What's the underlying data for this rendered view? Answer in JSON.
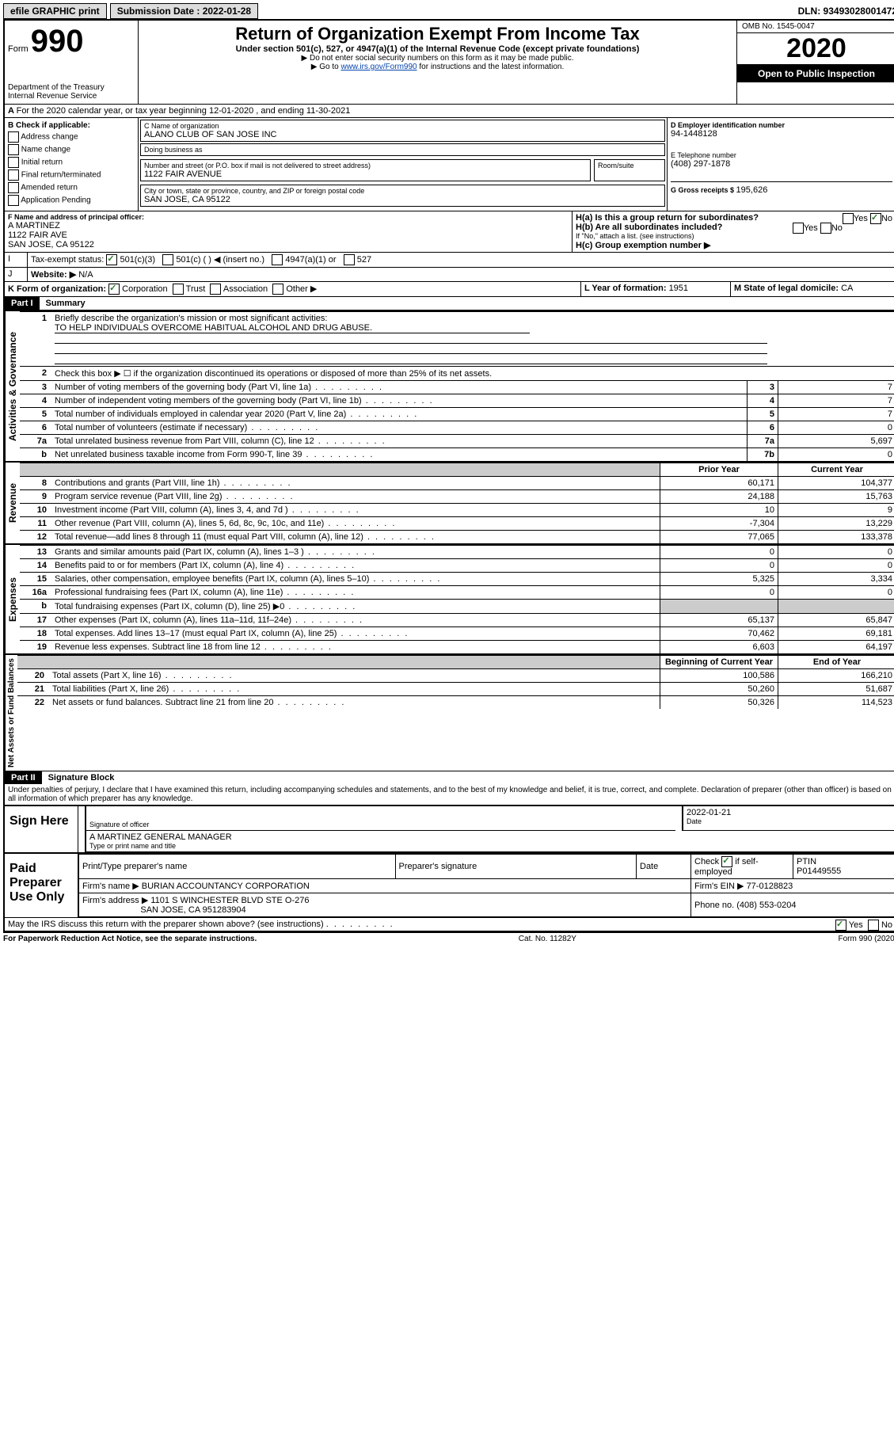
{
  "top": {
    "efile": "efile GRAPHIC print",
    "sub_label": "Submission Date : 2022-01-28",
    "dln": "DLN: 93493028001472"
  },
  "header": {
    "form_word": "Form",
    "form_num": "990",
    "dept": "Department of the Treasury\nInternal Revenue Service",
    "title": "Return of Organization Exempt From Income Tax",
    "subtitle": "Under section 501(c), 527, or 4947(a)(1) of the Internal Revenue Code (except private foundations)",
    "instr1": "▶ Do not enter social security numbers on this form as it may be made public.",
    "instr2_pre": "▶ Go to ",
    "instr2_link": "www.irs.gov/Form990",
    "instr2_post": " for instructions and the latest information.",
    "omb": "OMB No. 1545-0047",
    "year": "2020",
    "inspect": "Open to Public Inspection"
  },
  "line_a": "For the 2020 calendar year, or tax year beginning 12-01-2020    , and ending 11-30-2021",
  "sec_b": {
    "label": "B Check if applicable:",
    "opts": [
      "Address change",
      "Name change",
      "Initial return",
      "Final return/terminated",
      "Amended return",
      "Application Pending"
    ]
  },
  "sec_c": {
    "name_label": "C Name of organization",
    "name": "ALANO CLUB OF SAN JOSE INC",
    "dba_label": "Doing business as",
    "dba": "",
    "street_label": "Number and street (or P.O. box if mail is not delivered to street address)",
    "room_label": "Room/suite",
    "street": "1122 FAIR AVENUE",
    "city_label": "City or town, state or province, country, and ZIP or foreign postal code",
    "city": "SAN JOSE, CA  95122"
  },
  "sec_d": {
    "label": "D Employer identification number",
    "val": "94-1448128"
  },
  "sec_e": {
    "label": "E Telephone number",
    "val": "(408) 297-1878"
  },
  "sec_g": {
    "label": "G Gross receipts $ ",
    "val": "195,626"
  },
  "sec_f": {
    "label": "F  Name and address of principal officer:",
    "name": "A MARTINEZ",
    "addr1": "1122 FAIR AVE",
    "addr2": "SAN JOSE, CA  95122"
  },
  "sec_h": {
    "a": "H(a)  Is this a group return for subordinates?",
    "a_yes": "Yes",
    "a_no": "No",
    "b": "H(b)  Are all subordinates included?",
    "b_yes": "Yes",
    "b_no": "No",
    "b_note": "If \"No,\" attach a list. (see instructions)",
    "c": "H(c)  Group exemption number ▶"
  },
  "sec_i": {
    "label": "Tax-exempt status:",
    "o1": "501(c)(3)",
    "o2": "501(c) (  ) ◀ (insert no.)",
    "o3": "4947(a)(1) or",
    "o4": "527"
  },
  "sec_j": {
    "label": "Website: ▶",
    "val": "N/A"
  },
  "sec_k": {
    "label": "K Form of organization:",
    "o1": "Corporation",
    "o2": "Trust",
    "o3": "Association",
    "o4": "Other ▶"
  },
  "sec_l": {
    "label": "L Year of formation: ",
    "val": "1951"
  },
  "sec_m": {
    "label": "M State of legal domicile: ",
    "val": "CA"
  },
  "part1": {
    "header": "Part I",
    "title": "Summary"
  },
  "summary": {
    "l1_label": "Briefly describe the organization's mission or most significant activities:",
    "l1_val": "TO HELP INDIVIDUALS OVERCOME HABITUAL ALCOHOL AND DRUG ABUSE.",
    "l2": "Check this box ▶ ☐  if the organization discontinued its operations or disposed of more than 25% of its net assets.",
    "rows_single": [
      {
        "n": "3",
        "t": "Number of voting members of the governing body (Part VI, line 1a)",
        "c": "3",
        "v": "7"
      },
      {
        "n": "4",
        "t": "Number of independent voting members of the governing body (Part VI, line 1b)",
        "c": "4",
        "v": "7"
      },
      {
        "n": "5",
        "t": "Total number of individuals employed in calendar year 2020 (Part V, line 2a)",
        "c": "5",
        "v": "7"
      },
      {
        "n": "6",
        "t": "Total number of volunteers (estimate if necessary)",
        "c": "6",
        "v": "0"
      },
      {
        "n": "7a",
        "t": "Total unrelated business revenue from Part VIII, column (C), line 12",
        "c": "7a",
        "v": "5,697"
      },
      {
        "n": "b",
        "t": "Net unrelated business taxable income from Form 990-T, line 39",
        "c": "7b",
        "v": "0"
      }
    ],
    "col_headers": {
      "prior": "Prior Year",
      "current": "Current Year"
    },
    "revenue": [
      {
        "n": "8",
        "t": "Contributions and grants (Part VIII, line 1h)",
        "p": "60,171",
        "c": "104,377"
      },
      {
        "n": "9",
        "t": "Program service revenue (Part VIII, line 2g)",
        "p": "24,188",
        "c": "15,763"
      },
      {
        "n": "10",
        "t": "Investment income (Part VIII, column (A), lines 3, 4, and 7d )",
        "p": "10",
        "c": "9"
      },
      {
        "n": "11",
        "t": "Other revenue (Part VIII, column (A), lines 5, 6d, 8c, 9c, 10c, and 11e)",
        "p": "-7,304",
        "c": "13,229"
      },
      {
        "n": "12",
        "t": "Total revenue—add lines 8 through 11 (must equal Part VIII, column (A), line 12)",
        "p": "77,065",
        "c": "133,378"
      }
    ],
    "expenses": [
      {
        "n": "13",
        "t": "Grants and similar amounts paid (Part IX, column (A), lines 1–3 )",
        "p": "0",
        "c": "0"
      },
      {
        "n": "14",
        "t": "Benefits paid to or for members (Part IX, column (A), line 4)",
        "p": "0",
        "c": "0"
      },
      {
        "n": "15",
        "t": "Salaries, other compensation, employee benefits (Part IX, column (A), lines 5–10)",
        "p": "5,325",
        "c": "3,334"
      },
      {
        "n": "16a",
        "t": "Professional fundraising fees (Part IX, column (A), line 11e)",
        "p": "0",
        "c": "0"
      },
      {
        "n": "b",
        "t": "Total fundraising expenses (Part IX, column (D), line 25) ▶0",
        "p": "",
        "c": "",
        "shade": true
      },
      {
        "n": "17",
        "t": "Other expenses (Part IX, column (A), lines 11a–11d, 11f–24e)",
        "p": "65,137",
        "c": "65,847"
      },
      {
        "n": "18",
        "t": "Total expenses. Add lines 13–17 (must equal Part IX, column (A), line 25)",
        "p": "70,462",
        "c": "69,181"
      },
      {
        "n": "19",
        "t": "Revenue less expenses. Subtract line 18 from line 12",
        "p": "6,603",
        "c": "64,197"
      }
    ],
    "net_headers": {
      "b": "Beginning of Current Year",
      "e": "End of Year"
    },
    "net": [
      {
        "n": "20",
        "t": "Total assets (Part X, line 16)",
        "p": "100,586",
        "c": "166,210"
      },
      {
        "n": "21",
        "t": "Total liabilities (Part X, line 26)",
        "p": "50,260",
        "c": "51,687"
      },
      {
        "n": "22",
        "t": "Net assets or fund balances. Subtract line 21 from line 20",
        "p": "50,326",
        "c": "114,523"
      }
    ]
  },
  "vlabels": {
    "gov": "Activities & Governance",
    "rev": "Revenue",
    "exp": "Expenses",
    "net": "Net Assets or Fund Balances"
  },
  "part2": {
    "header": "Part II",
    "title": "Signature Block"
  },
  "sig": {
    "decl": "Under penalties of perjury, I declare that I have examined this return, including accompanying schedules and statements, and to the best of my knowledge and belief, it is true, correct, and complete. Declaration of preparer (other than officer) is based on all information of which preparer has any knowledge.",
    "sign_here": "Sign Here",
    "sig_officer": "Signature of officer",
    "date_label": "Date",
    "date": "2022-01-21",
    "officer": "A MARTINEZ GENERAL MANAGER",
    "type_label": "Type or print name and title"
  },
  "paid": {
    "label": "Paid Preparer Use Only",
    "h1": "Print/Type preparer's name",
    "h2": "Preparer's signature",
    "h3": "Date",
    "h4_pre": "Check",
    "h4_post": "if self-employed",
    "h5": "PTIN",
    "ptin": "P01449555",
    "firm_name_l": "Firm's name    ▶",
    "firm_name": "BURIAN ACCOUNTANCY CORPORATION",
    "firm_ein_l": "Firm's EIN ▶",
    "firm_ein": "77-0128823",
    "firm_addr_l": "Firm's address ▶",
    "firm_addr1": "1101 S WINCHESTER BLVD STE O-276",
    "firm_addr2": "SAN JOSE, CA  951283904",
    "phone_l": "Phone no.",
    "phone": "(408) 553-0204"
  },
  "discuss": {
    "q": "May the IRS discuss this return with the preparer shown above? (see instructions)",
    "yes": "Yes",
    "no": "No"
  },
  "footer": {
    "l": "For Paperwork Reduction Act Notice, see the separate instructions.",
    "c": "Cat. No. 11282Y",
    "r": "Form 990 (2020)"
  }
}
